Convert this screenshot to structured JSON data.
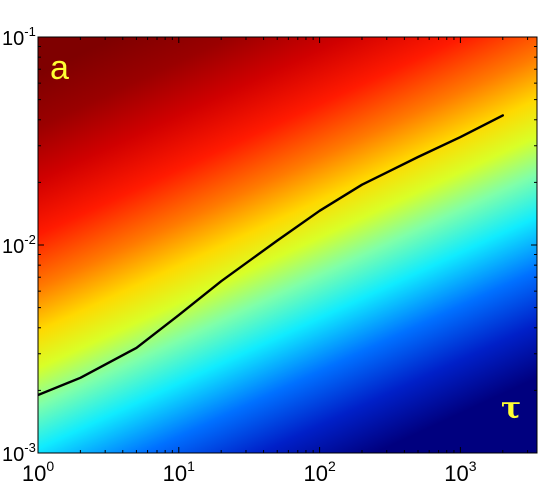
{
  "chart_data": {
    "type": "heatmap",
    "title": "",
    "xlabel": "",
    "ylabel": "",
    "x_scale": "log",
    "y_scale": "log",
    "xlim": [
      1,
      3500
    ],
    "ylim": [
      0.001,
      0.1
    ],
    "grid": false,
    "x_ticks": [
      {
        "value": 1,
        "base": "10",
        "exp": "0"
      },
      {
        "value": 10,
        "base": "10",
        "exp": "1"
      },
      {
        "value": 100,
        "base": "10",
        "exp": "2"
      },
      {
        "value": 1000,
        "base": "10",
        "exp": "3"
      }
    ],
    "y_ticks": [
      {
        "value": 0.001,
        "base": "10",
        "exp": "-3"
      },
      {
        "value": 0.01,
        "base": "10",
        "exp": "-2"
      },
      {
        "value": 0.1,
        "base": "10",
        "exp": "-1"
      }
    ],
    "annotations": [
      {
        "text": "a",
        "position": "top-left",
        "color": "#ffff33"
      },
      {
        "text": "τ",
        "position": "bottom-right",
        "color": "#ffff33"
      }
    ],
    "colormap": "jet",
    "background_color": "#00007f",
    "series": [
      {
        "color": "#000000",
        "x": [
          1,
          2,
          5,
          10,
          20,
          50,
          100,
          200,
          500,
          1000,
          2000
        ],
        "y": [
          0.0019,
          0.0023,
          0.0032,
          0.0046,
          0.0067,
          0.0105,
          0.0146,
          0.0195,
          0.0265,
          0.033,
          0.042
        ]
      }
    ]
  }
}
